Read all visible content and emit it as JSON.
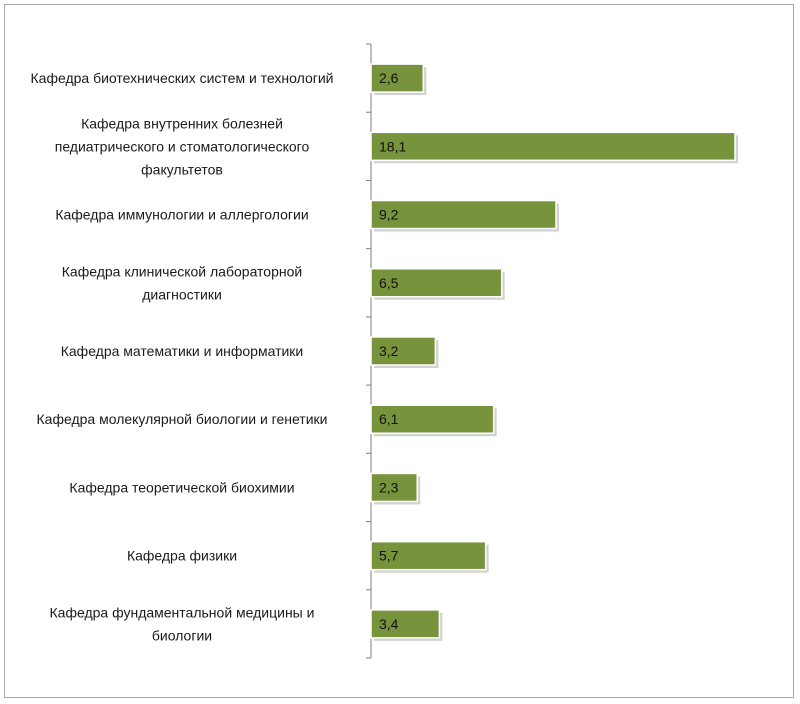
{
  "chart_data": {
    "type": "bar",
    "orientation": "horizontal",
    "categories": [
      "Кафедра биотехнических систем и технологий",
      "Кафедра внутренних болезней педиатрического и стоматологического факультетов",
      "Кафедра иммунологии и аллергологии",
      "Кафедра клинической лабораторной диагностики",
      "Кафедра математики и информатики",
      "Кафедра молекулярной биологии и генетики",
      "Кафедра теоретической биохимии",
      "Кафедра физики",
      "Кафедра фундаментальной медицины и биологии"
    ],
    "category_label_lines": [
      [
        "Кафедра биотехнических систем и технологий"
      ],
      [
        "Кафедра внутренних болезней",
        "педиатрического и стоматологического",
        "факультетов"
      ],
      [
        "Кафедра иммунологии и аллергологии"
      ],
      [
        "Кафедра клинической лабораторной",
        "диагностики"
      ],
      [
        "Кафедра математики и информатики"
      ],
      [
        "Кафедра молекулярной биологии и генетики"
      ],
      [
        "Кафедра теоретической биохимии"
      ],
      [
        "Кафедра физики"
      ],
      [
        "Кафедра фундаментальной медицины и",
        "биологии"
      ]
    ],
    "values": [
      2.6,
      18.1,
      9.2,
      6.5,
      3.2,
      6.1,
      2.3,
      5.7,
      3.4
    ],
    "data_labels": [
      "2,6",
      "18,1",
      "9,2",
      "6,5",
      "3,2",
      "6,1",
      "2,3",
      "5,7",
      "3,4"
    ],
    "title": "",
    "xlabel": "",
    "ylabel": "",
    "xlim": [
      0,
      19
    ],
    "grid": false,
    "legend": "none",
    "colors": {
      "bar_fill": "#77933c",
      "bar_edge": "#ffffff",
      "shadow": "#bfbfbf",
      "axis": "#7f7f7f"
    }
  }
}
